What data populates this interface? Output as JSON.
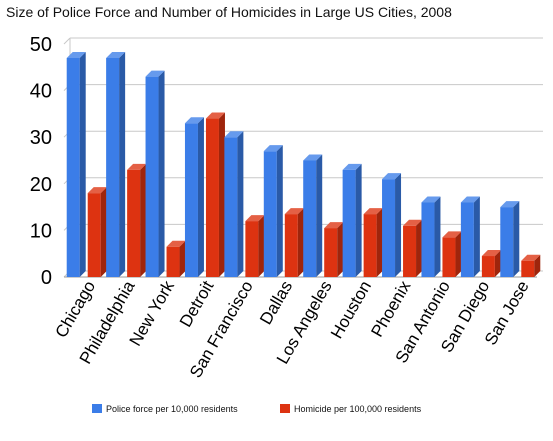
{
  "chart_data": {
    "type": "bar",
    "title": "Size of Police Force and Number of Homicides in Large US Cities, 2008",
    "xlabel": "",
    "ylabel": "",
    "ylim": [
      0,
      50
    ],
    "yticks": [
      0,
      10,
      20,
      30,
      40,
      50
    ],
    "grid": true,
    "three_d": true,
    "legend_position": "bottom",
    "categories": [
      "Chicago",
      "Philadelphia",
      "New York",
      "Detroit",
      "San Francisco",
      "Dallas",
      "Los Angeles",
      "Houston",
      "Phoenix",
      "San Antonio",
      "San Diego",
      "San Jose"
    ],
    "series": [
      {
        "name": "Police force per 10,000 residents",
        "color": "#3b7de8",
        "values": [
          47,
          47,
          43,
          33,
          30,
          27,
          25,
          23,
          21,
          16,
          16,
          15
        ]
      },
      {
        "name": "Homicide per 100,000 residents",
        "color": "#dd3311",
        "values": [
          18,
          23,
          6.5,
          34,
          12,
          13.5,
          10.5,
          13.5,
          11,
          8.5,
          4.5,
          3.5
        ]
      }
    ]
  }
}
